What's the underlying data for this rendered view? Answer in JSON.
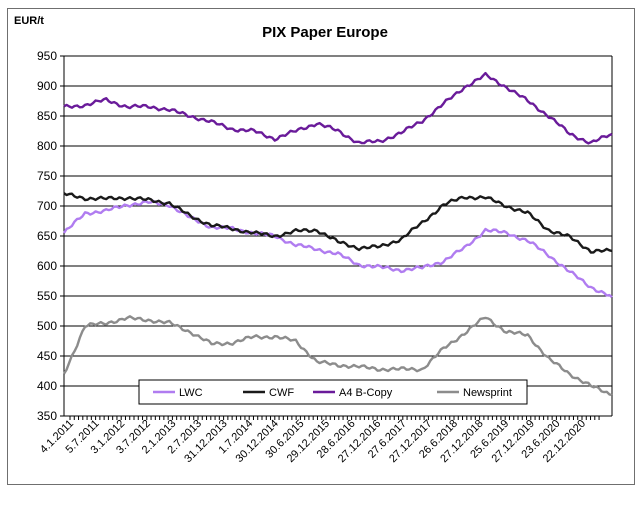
{
  "chart_data": {
    "type": "line",
    "title": "PIX Paper Europe",
    "unit_label": "EUR/t",
    "xlabel": "",
    "ylabel": "",
    "ylim": [
      350,
      950
    ],
    "y_ticks": [
      350,
      400,
      450,
      500,
      550,
      600,
      650,
      700,
      750,
      800,
      850,
      900,
      950
    ],
    "x_tick_labels": [
      "4.1.2011",
      "5.7.2011",
      "3.1.2012",
      "3.7.2012",
      "2.1.2013",
      "2.7.2013",
      "31.12.2013",
      "1.7.2014",
      "30.12.2014",
      "30.6.2015",
      "29.12.2015",
      "28.6.2016",
      "27.12.2016",
      "27.6.2017",
      "27.12.2017",
      "26.6.2018",
      "27.12.2018",
      "25.6.2019",
      "27.12.2019",
      "23.6.2020",
      "22.12.2020"
    ],
    "grid": true,
    "legend_position": "bottom-inside",
    "series": [
      {
        "name": "LWC",
        "color": "#b07cf0",
        "values": [
          655,
          688,
          692,
          702,
          706,
          702,
          680,
          665,
          662,
          655,
          650,
          635,
          628,
          620,
          602,
          598,
          593,
          597,
          608,
          630,
          660,
          655,
          642,
          618,
          590,
          565,
          548
        ]
      },
      {
        "name": "CWF",
        "color": "#1a1a1a",
        "values": [
          720,
          713,
          712,
          714,
          710,
          705,
          683,
          668,
          662,
          655,
          650,
          658,
          660,
          640,
          630,
          632,
          645,
          672,
          702,
          715,
          714,
          700,
          688,
          660,
          648,
          625,
          625
        ]
      },
      {
        "name": "A4 B-Copy",
        "color": "#6a1b9a",
        "values": [
          865,
          868,
          877,
          865,
          866,
          860,
          850,
          840,
          828,
          825,
          812,
          825,
          838,
          825,
          805,
          808,
          822,
          842,
          870,
          898,
          918,
          898,
          875,
          850,
          820,
          805,
          820
        ]
      },
      {
        "name": "Newsprint",
        "color": "#8c8c8c",
        "values": [
          420,
          500,
          505,
          513,
          510,
          505,
          490,
          470,
          472,
          482,
          482,
          475,
          440,
          435,
          432,
          428,
          428,
          428,
          462,
          488,
          515,
          490,
          485,
          445,
          420,
          400,
          385
        ]
      }
    ]
  }
}
